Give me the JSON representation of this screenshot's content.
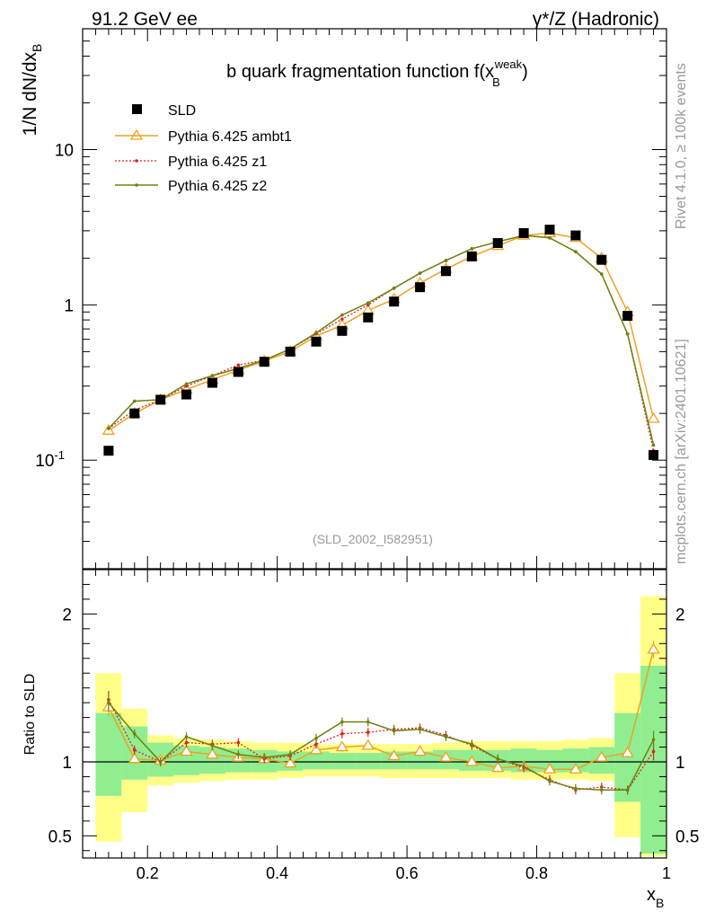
{
  "header": {
    "left": "91.2 GeV ee",
    "right": "γ*/Z (Hadronic)"
  },
  "side": {
    "rivet": "Rivet 4.1.0, ≥ 100k events",
    "mcplots": "mcplots.cern.ch [arXiv:2401.10621]"
  },
  "chart_data": {
    "type": "scatter",
    "title": "b quark fragmentation function f(x_B^weak)",
    "analysis_id": "(SLD_2002_I582951)",
    "ylabel": "1/N dN/dx_B",
    "xlabel": "x_B",
    "ratio_ylabel": "Ratio to SLD",
    "xlim": [
      0.1,
      1.0
    ],
    "ylim": [
      0.02,
      60
    ],
    "yscale": "log",
    "ratio_ylim": [
      0.35,
      2.3
    ],
    "main_y_ticks": [
      {
        "v": 0.1,
        "label": "10^-1"
      },
      {
        "v": 1,
        "label": "1"
      },
      {
        "v": 10,
        "label": "10"
      }
    ],
    "ratio_y_ticks": [
      {
        "v": 0.5,
        "label": "0.5"
      },
      {
        "v": 1,
        "label": "1"
      },
      {
        "v": 2,
        "label": "2"
      }
    ],
    "x_ticks": [
      {
        "v": 0.2,
        "label": "0.2"
      },
      {
        "v": 0.4,
        "label": "0.4"
      },
      {
        "v": 0.6,
        "label": "0.6"
      },
      {
        "v": 0.8,
        "label": "0.8"
      },
      {
        "v": 1.0,
        "label": "1"
      }
    ],
    "x": [
      0.14,
      0.18,
      0.22,
      0.26,
      0.3,
      0.34,
      0.38,
      0.42,
      0.46,
      0.5,
      0.54,
      0.58,
      0.62,
      0.66,
      0.7,
      0.74,
      0.78,
      0.82,
      0.86,
      0.9,
      0.94,
      0.98
    ],
    "data": {
      "name": "SLD",
      "values": [
        0.115,
        0.2,
        0.245,
        0.265,
        0.315,
        0.37,
        0.43,
        0.5,
        0.58,
        0.68,
        0.83,
        1.05,
        1.3,
        1.65,
        2.05,
        2.5,
        2.9,
        3.05,
        2.8,
        1.95,
        0.85,
        0.108
      ]
    },
    "series": [
      {
        "name": "Pythia 6.425 ambt1",
        "color": "#f0a020",
        "style": "triangle",
        "values": [
          0.155,
          0.2,
          0.245,
          0.285,
          0.33,
          0.38,
          0.435,
          0.5,
          0.63,
          0.74,
          0.92,
          1.09,
          1.38,
          1.7,
          2.05,
          2.4,
          2.8,
          2.9,
          2.7,
          2.0,
          0.9,
          0.185
        ]
      },
      {
        "name": "Pythia 6.425 z1",
        "color": "#e02020",
        "style": "dotted",
        "values": [
          0.16,
          0.21,
          0.245,
          0.3,
          0.35,
          0.41,
          0.44,
          0.52,
          0.65,
          0.81,
          1.0,
          1.28,
          1.6,
          1.93,
          2.3,
          2.55,
          2.8,
          2.7,
          2.2,
          1.58,
          0.65,
          0.115
        ]
      },
      {
        "name": "Pythia 6.425 z2",
        "color": "#708010",
        "style": "line",
        "values": [
          0.16,
          0.24,
          0.245,
          0.31,
          0.35,
          0.39,
          0.44,
          0.52,
          0.66,
          0.86,
          1.03,
          1.28,
          1.6,
          1.93,
          2.3,
          2.55,
          2.8,
          2.7,
          2.2,
          1.58,
          0.65,
          0.125
        ]
      }
    ],
    "ratio": {
      "band_inner": [
        [
          0.77,
          1.33
        ],
        [
          0.88,
          1.24
        ],
        [
          0.9,
          1.13
        ],
        [
          0.91,
          1.11
        ],
        [
          0.92,
          1.1
        ],
        [
          0.93,
          1.09
        ],
        [
          0.93,
          1.08
        ],
        [
          0.94,
          1.07
        ],
        [
          0.95,
          1.07
        ],
        [
          0.95,
          1.06
        ],
        [
          0.95,
          1.06
        ],
        [
          0.95,
          1.07
        ],
        [
          0.95,
          1.07
        ],
        [
          0.95,
          1.08
        ],
        [
          0.94,
          1.08
        ],
        [
          0.94,
          1.08
        ],
        [
          0.93,
          1.09
        ],
        [
          0.93,
          1.08
        ],
        [
          0.93,
          1.09
        ],
        [
          0.92,
          1.1
        ],
        [
          0.73,
          1.33
        ],
        [
          0.38,
          1.65
        ]
      ],
      "band_outer": [
        [
          0.46,
          1.6
        ],
        [
          0.66,
          1.36
        ],
        [
          0.84,
          1.18
        ],
        [
          0.86,
          1.16
        ],
        [
          0.87,
          1.15
        ],
        [
          0.88,
          1.14
        ],
        [
          0.88,
          1.13
        ],
        [
          0.89,
          1.13
        ],
        [
          0.9,
          1.12
        ],
        [
          0.9,
          1.12
        ],
        [
          0.9,
          1.12
        ],
        [
          0.89,
          1.12
        ],
        [
          0.89,
          1.12
        ],
        [
          0.89,
          1.13
        ],
        [
          0.89,
          1.14
        ],
        [
          0.89,
          1.14
        ],
        [
          0.88,
          1.14
        ],
        [
          0.88,
          1.14
        ],
        [
          0.88,
          1.15
        ],
        [
          0.87,
          1.16
        ],
        [
          0.49,
          1.6
        ],
        [
          0.36,
          2.12
        ]
      ],
      "series": [
        [
          1.37,
          1.02,
          1.01,
          1.07,
          1.05,
          1.03,
          1.02,
          0.99,
          1.08,
          1.1,
          1.11,
          1.04,
          1.07,
          1.03,
          1.0,
          0.96,
          0.97,
          0.95,
          0.95,
          1.03,
          1.06,
          1.76
        ],
        [
          1.42,
          1.08,
          1.0,
          1.13,
          1.12,
          1.13,
          1.02,
          1.04,
          1.12,
          1.19,
          1.2,
          1.22,
          1.23,
          1.18,
          1.11,
          1.02,
          0.96,
          0.88,
          0.81,
          0.83,
          0.81,
          1.07
        ],
        [
          1.4,
          1.19,
          1.0,
          1.17,
          1.11,
          1.05,
          1.03,
          1.05,
          1.16,
          1.27,
          1.27,
          1.21,
          1.22,
          1.17,
          1.12,
          1.02,
          0.97,
          0.87,
          0.82,
          0.81,
          0.81,
          1.15
        ]
      ]
    }
  }
}
